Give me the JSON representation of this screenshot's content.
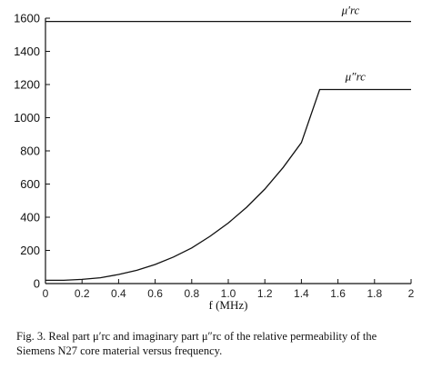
{
  "chart_data": {
    "type": "line",
    "title": "",
    "xlabel": "f (MHz)",
    "ylabel": "",
    "xlim": [
      0,
      2.0
    ],
    "ylim": [
      0,
      1600
    ],
    "yticks": [
      0,
      200,
      400,
      600,
      800,
      1000,
      1200,
      1400,
      1600
    ],
    "ytick_labels": [
      "0",
      "200",
      "400",
      "600",
      "800",
      "1000",
      "1200",
      "1400",
      "1600"
    ],
    "xticks": [
      0,
      0.2,
      0.4,
      0.6,
      0.8,
      1.0,
      1.2,
      1.4,
      1.6,
      1.8,
      2.0
    ],
    "xtick_labels": [
      "0",
      "0.2",
      "0.4",
      "0.6",
      "0.8",
      "1.0",
      "1.2",
      "1.4",
      "1.6",
      "1.8",
      "2"
    ],
    "grid": false,
    "series": [
      {
        "name": "μ′rc",
        "x": [
          0,
          2.0
        ],
        "y": [
          1580,
          1580
        ]
      },
      {
        "name": "μ″rc",
        "x": [
          0,
          0.1,
          0.2,
          0.3,
          0.4,
          0.5,
          0.6,
          0.7,
          0.8,
          0.9,
          1.0,
          1.1,
          1.2,
          1.3,
          1.4,
          1.5,
          1.6,
          1.7,
          1.8,
          1.9,
          2.0
        ],
        "y": [
          20,
          20,
          25,
          35,
          55,
          80,
          115,
          160,
          215,
          285,
          365,
          460,
          570,
          700,
          850,
          1170,
          1170,
          1170,
          1170,
          1170,
          1170
        ]
      }
    ]
  },
  "caption": {
    "text": "Fig. 3.   Real part μ′rc and imaginary part μ″rc of the relative permeability of the Siemens N27 core material versus frequency."
  }
}
